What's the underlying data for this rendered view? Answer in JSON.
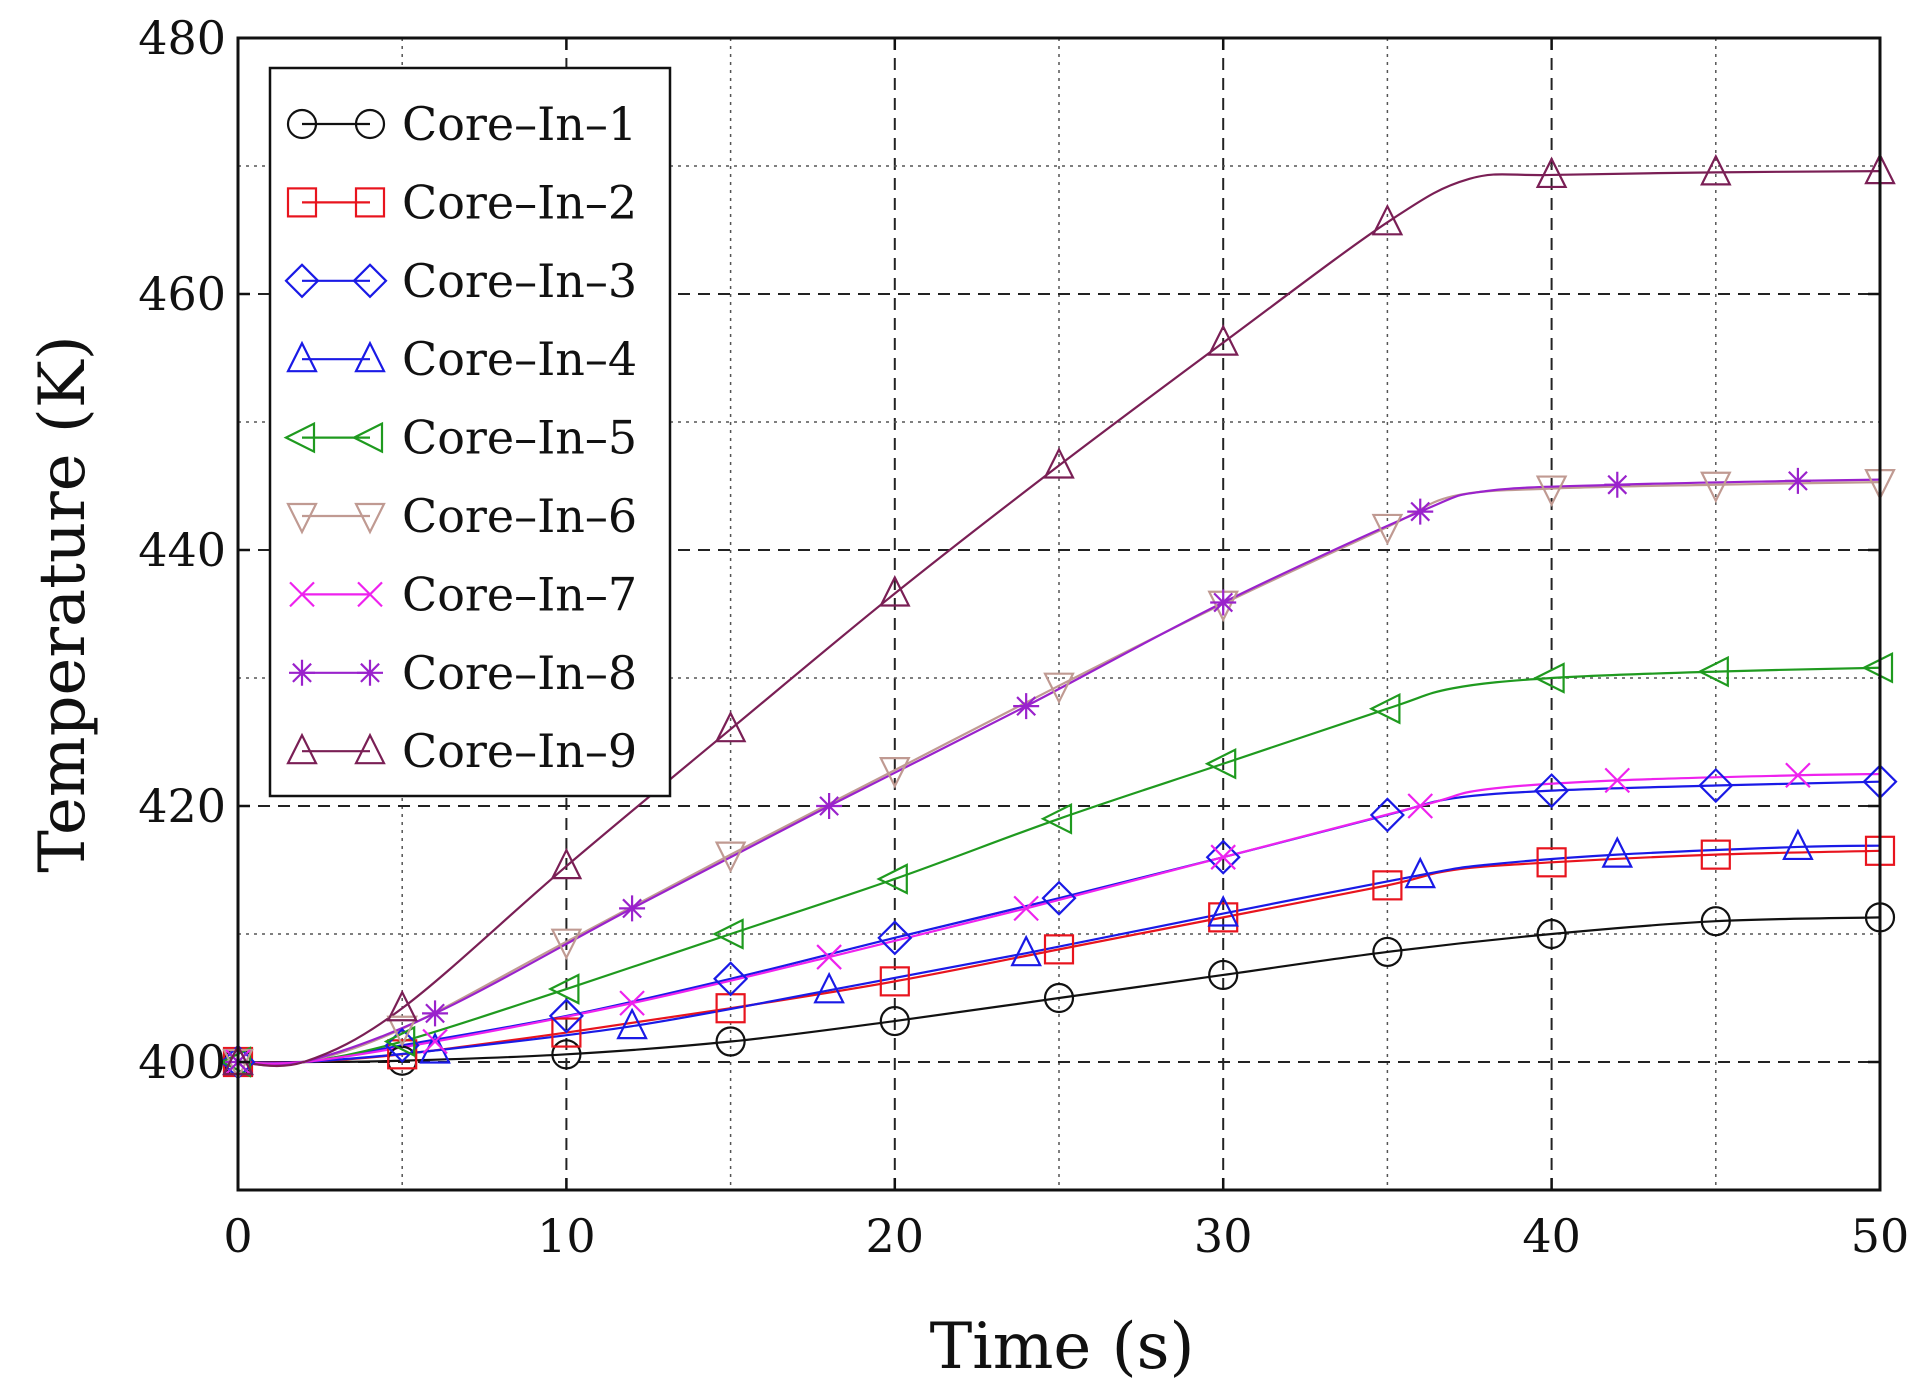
{
  "chart_data": {
    "type": "line",
    "title": "",
    "xlabel": "Time (s)",
    "ylabel": "Temperature (K)",
    "xlim": [
      0,
      50
    ],
    "ylim": [
      390,
      480
    ],
    "xticks": [
      0,
      10,
      20,
      30,
      40,
      50
    ],
    "yticks": [
      400,
      420,
      440,
      460,
      480
    ],
    "x_tick_labels": [
      "0",
      "10",
      "20",
      "30",
      "40",
      "50"
    ],
    "y_tick_labels": [
      "400",
      "420",
      "440",
      "460",
      "480"
    ],
    "grid": true,
    "legend_position": "top-left",
    "series": [
      {
        "name": "Core–In–1",
        "color": "#111111",
        "marker": "circle",
        "curve": [
          [
            0,
            400
          ],
          [
            2,
            400
          ],
          [
            5,
            400.1
          ],
          [
            10,
            400.6
          ],
          [
            15,
            401.6
          ],
          [
            20,
            403.2
          ],
          [
            25,
            405
          ],
          [
            30,
            406.8
          ],
          [
            35,
            408.6
          ],
          [
            40,
            410
          ],
          [
            45,
            411
          ],
          [
            50,
            411.3
          ]
        ],
        "marker_x": [
          0,
          5,
          10,
          15,
          20,
          25,
          30,
          35,
          40,
          45,
          50
        ]
      },
      {
        "name": "Core–In–2",
        "color": "#e8141e",
        "marker": "square",
        "curve": [
          [
            0,
            400
          ],
          [
            2,
            400
          ],
          [
            5,
            400.6
          ],
          [
            10,
            402.3
          ],
          [
            15,
            404.2
          ],
          [
            20,
            406.3
          ],
          [
            25,
            408.8
          ],
          [
            30,
            411.3
          ],
          [
            35,
            413.8
          ],
          [
            37,
            415
          ],
          [
            40,
            415.6
          ],
          [
            45,
            416.2
          ],
          [
            50,
            416.5
          ]
        ],
        "marker_x": [
          0,
          5,
          10,
          15,
          20,
          25,
          30,
          35,
          40,
          45,
          50
        ]
      },
      {
        "name": "Core–In–3",
        "color": "#1a1ae6",
        "marker": "diamond",
        "curve": [
          [
            0,
            400
          ],
          [
            2,
            400
          ],
          [
            5,
            401.3
          ],
          [
            10,
            403.6
          ],
          [
            15,
            406.5
          ],
          [
            20,
            409.7
          ],
          [
            25,
            412.8
          ],
          [
            30,
            416
          ],
          [
            35,
            419.3
          ],
          [
            37,
            420.6
          ],
          [
            40,
            421.2
          ],
          [
            45,
            421.6
          ],
          [
            50,
            421.9
          ]
        ],
        "marker_x": [
          0,
          5,
          10,
          15,
          20,
          25,
          30,
          35,
          40,
          45,
          50
        ]
      },
      {
        "name": "Core–In–4",
        "color": "#1a1ae6",
        "marker": "triangle-up",
        "curve": [
          [
            0,
            400
          ],
          [
            2,
            400
          ],
          [
            6,
            400.9
          ],
          [
            12,
            402.8
          ],
          [
            18,
            405.6
          ],
          [
            24,
            408.5
          ],
          [
            30,
            411.6
          ],
          [
            36,
            414.6
          ],
          [
            38,
            415.4
          ],
          [
            42,
            416.2
          ],
          [
            47.5,
            416.8
          ],
          [
            50,
            416.9
          ]
        ],
        "marker_x": [
          0,
          6,
          12,
          18,
          24,
          30,
          36,
          42,
          47.5
        ]
      },
      {
        "name": "Core–In–5",
        "color": "#1f9a1f",
        "marker": "triangle-left",
        "curve": [
          [
            0,
            400
          ],
          [
            2,
            400
          ],
          [
            5,
            401.6
          ],
          [
            10,
            405.7
          ],
          [
            15,
            410
          ],
          [
            20,
            414.3
          ],
          [
            25,
            419
          ],
          [
            30,
            423.3
          ],
          [
            35,
            427.6
          ],
          [
            37,
            429.2
          ],
          [
            40,
            430
          ],
          [
            45,
            430.5
          ],
          [
            50,
            430.8
          ]
        ],
        "marker_x": [
          0,
          5,
          10,
          15,
          20,
          25,
          30,
          35,
          40,
          45,
          50
        ]
      },
      {
        "name": "Core–In–6",
        "color": "#c09a92",
        "marker": "triangle-down",
        "curve": [
          [
            0,
            400
          ],
          [
            2,
            400
          ],
          [
            5,
            402.6
          ],
          [
            10,
            409.4
          ],
          [
            15,
            416.2
          ],
          [
            20,
            422.8
          ],
          [
            25,
            429.4
          ],
          [
            30,
            435.8
          ],
          [
            35,
            441.8
          ],
          [
            37,
            444.2
          ],
          [
            40,
            444.8
          ],
          [
            45,
            445.1
          ],
          [
            50,
            445.3
          ]
        ],
        "marker_x": [
          0,
          5,
          10,
          15,
          20,
          25,
          30,
          35,
          40,
          45,
          50
        ]
      },
      {
        "name": "Core–In–7",
        "color": "#ee22ee",
        "marker": "x",
        "curve": [
          [
            0,
            400
          ],
          [
            2,
            400
          ],
          [
            6,
            401.6
          ],
          [
            12,
            404.6
          ],
          [
            18,
            408.2
          ],
          [
            24,
            412
          ],
          [
            30,
            416
          ],
          [
            36,
            420
          ],
          [
            38,
            421.3
          ],
          [
            42,
            422
          ],
          [
            47.5,
            422.4
          ],
          [
            50,
            422.5
          ]
        ],
        "marker_x": [
          0,
          6,
          12,
          18,
          24,
          30,
          36,
          42,
          47.5
        ]
      },
      {
        "name": "Core–In–8",
        "color": "#9a22cc",
        "marker": "star",
        "curve": [
          [
            0,
            400
          ],
          [
            2,
            400
          ],
          [
            6,
            403.8
          ],
          [
            12,
            412
          ],
          [
            18,
            420
          ],
          [
            24,
            427.8
          ],
          [
            30,
            435.9
          ],
          [
            36,
            443
          ],
          [
            38,
            444.6
          ],
          [
            42,
            445.1
          ],
          [
            47.5,
            445.4
          ],
          [
            50,
            445.5
          ]
        ],
        "marker_x": [
          0,
          6,
          12,
          18,
          24,
          30,
          36,
          42,
          47.5
        ]
      },
      {
        "name": "Core–In–9",
        "color": "#7a1f55",
        "marker": "triangle-up",
        "curve": [
          [
            0,
            400
          ],
          [
            2,
            400
          ],
          [
            5,
            404.2
          ],
          [
            10,
            415.3
          ],
          [
            15,
            426
          ],
          [
            20,
            436.6
          ],
          [
            25,
            446.6
          ],
          [
            30,
            456.2
          ],
          [
            35,
            465.6
          ],
          [
            37.5,
            469
          ],
          [
            40,
            469.3
          ],
          [
            45,
            469.5
          ],
          [
            50,
            469.6
          ]
        ],
        "marker_x": [
          0,
          5,
          10,
          15,
          20,
          25,
          30,
          35,
          40,
          45,
          50
        ]
      }
    ]
  }
}
